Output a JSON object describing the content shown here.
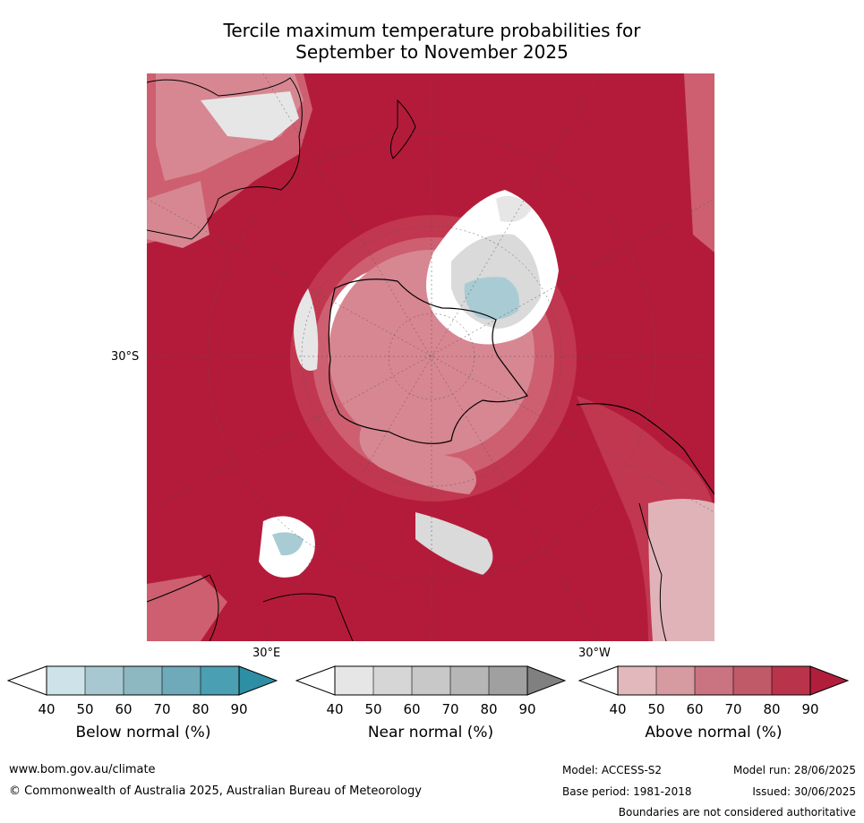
{
  "title_line1": "Tercile maximum temperature probabilities for",
  "title_line2": "September to November 2025",
  "map": {
    "lat_label": "30°S",
    "lon_label_east": "30°E",
    "lon_label_west": "30°W",
    "colors": {
      "above_90": "#b41b3a",
      "above_80": "#c1374f",
      "above_70": "#cd5f70",
      "above_60": "#d78792",
      "above_50": "#e0b3b9",
      "near": "#d4d4d4",
      "below": "#a9cbd4",
      "land_outline": "#000000"
    }
  },
  "colorbars": [
    {
      "name": "Below normal (%)",
      "ticks": [
        "40",
        "50",
        "60",
        "70",
        "80",
        "90"
      ],
      "colors": [
        "#ffffff",
        "#cde3e9",
        "#a7c8d0",
        "#8db8c1",
        "#6eaab9",
        "#4aa0b2",
        "#2e8ea3"
      ]
    },
    {
      "name": "Near normal (%)",
      "ticks": [
        "40",
        "50",
        "60",
        "70",
        "80",
        "90"
      ],
      "colors": [
        "#ffffff",
        "#e6e6e6",
        "#d6d6d6",
        "#c8c8c8",
        "#b6b6b6",
        "#a0a0a0",
        "#808080"
      ]
    },
    {
      "name": "Above normal (%)",
      "ticks": [
        "40",
        "50",
        "60",
        "70",
        "80",
        "90"
      ],
      "colors": [
        "#ffffff",
        "#e2b8bd",
        "#d69aa1",
        "#c97480",
        "#c05a69",
        "#b9344b",
        "#b11e3b"
      ]
    }
  ],
  "footer": {
    "website": "www.bom.gov.au/climate",
    "copyright": "© Commonwealth of Australia 2025, Australian Bureau of Meteorology",
    "model": "Model: ACCESS-S2",
    "base_period": "Base period: 1981-2018",
    "model_run": "Model run: 28/06/2025",
    "issued": "Issued: 30/06/2025",
    "disclaimer": "Boundaries are not considered authoritative"
  }
}
